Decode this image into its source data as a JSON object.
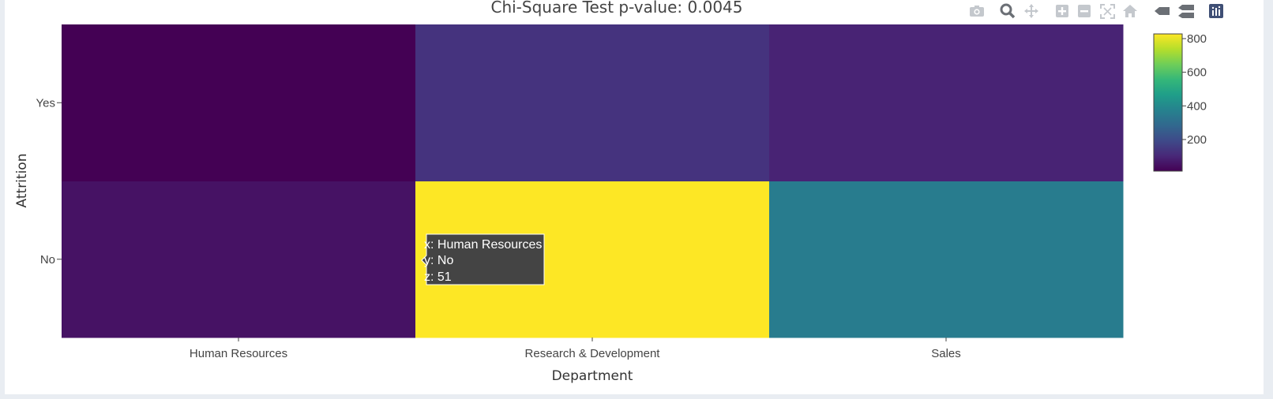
{
  "chart_data": {
    "type": "heatmap",
    "title": "Chi-Square Test p-value: 0.0045",
    "xlabel": "Department",
    "ylabel": "Attrition",
    "x_categories": [
      "Human Resources",
      "Research & Development",
      "Sales"
    ],
    "y_categories": [
      "No",
      "Yes"
    ],
    "z": [
      [
        51,
        828,
        354
      ],
      [
        12,
        133,
        92
      ]
    ],
    "colorscale": "Viridis",
    "colorbar": {
      "min": 12,
      "max": 828,
      "tick_values": [
        200,
        400,
        600,
        800
      ],
      "tick_labels": [
        "200",
        "400",
        "600",
        "800"
      ]
    },
    "tooltip": {
      "line_x": "x: Human Resources",
      "line_y": "y: No",
      "line_z": "z: 51"
    }
  },
  "modebar": {
    "buttons": [
      "camera-icon",
      "zoom-icon",
      "pan-icon",
      "zoom-in-icon",
      "zoom-out-icon",
      "autoscale-icon",
      "reset-axes-icon",
      "spike-lines-icon",
      "compare-data-icon",
      "plotly-logo-icon"
    ]
  }
}
